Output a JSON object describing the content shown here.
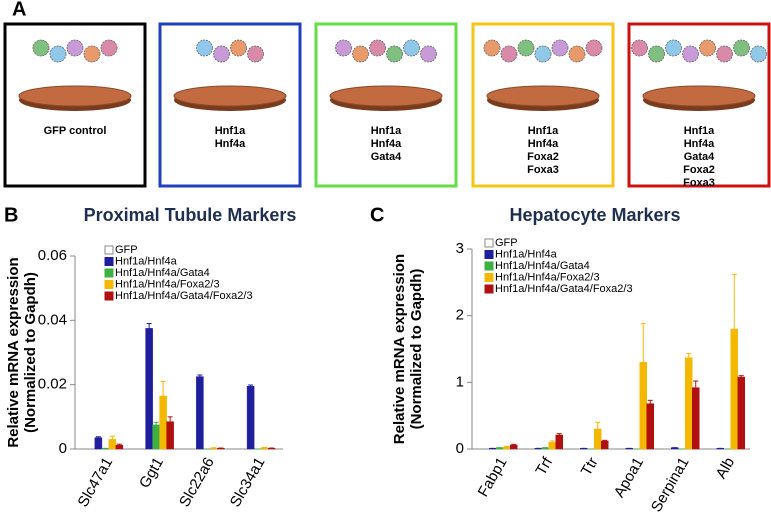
{
  "panels": [
    {
      "label": "A",
      "boxes": [
        {
          "color": "#000000",
          "lines": [
            "GFP control"
          ]
        },
        {
          "color": "#1f3fbf",
          "lines": [
            "Hnf1a",
            "Hnf4a"
          ]
        },
        {
          "color": "#66dd44",
          "lines": [
            "Hnf1a",
            "Hnf4a",
            "Gata4"
          ]
        },
        {
          "color": "#f5c518",
          "lines": [
            "Hnf1a",
            "Hnf4a",
            "Foxa2",
            "Foxa3"
          ]
        },
        {
          "color": "#cc1111",
          "lines": [
            "Hnf1a",
            "Hnf4a",
            "Gata4",
            "Foxa2",
            "Foxa3"
          ]
        }
      ]
    }
  ],
  "chart_data": [
    {
      "type": "bar",
      "panel_label": "B",
      "title": "Proximal Tubule Markers",
      "ylabel": [
        "Relative mRNA expression",
        "(Normalized to Gapdh)"
      ],
      "categories": [
        "Slc47a1",
        "Ggt1",
        "Slc22a6",
        "Slc34a1"
      ],
      "ylim": [
        0,
        0.06
      ],
      "yticks": [
        0,
        0.02,
        0.04,
        0.06
      ],
      "series": [
        {
          "name": "GFP",
          "color": "#ffffff",
          "values": [
            0,
            0,
            0,
            0
          ],
          "errors": [
            0,
            0,
            0,
            0
          ]
        },
        {
          "name": "Hnf1a/Hnf4a",
          "color": "#1f1f9e",
          "values": [
            0.0035,
            0.0375,
            0.0225,
            0.0195
          ],
          "errors": [
            0.0003,
            0.0015,
            0.0005,
            0.0004
          ]
        },
        {
          "name": "Hnf1a/Hnf4a/Gata4",
          "color": "#3cb043",
          "values": [
            0.0002,
            0.0075,
            0,
            0
          ],
          "errors": [
            0,
            0.0008,
            0,
            0
          ]
        },
        {
          "name": "Hnf1a/Hnf4a/Foxa2/3",
          "color": "#f5b800",
          "values": [
            0.003,
            0.0165,
            0.0003,
            0.0004
          ],
          "errors": [
            0.001,
            0.0045,
            0.0001,
            0.0001
          ]
        },
        {
          "name": "Hnf1a/Hnf4a/Gata4/Foxa2/3",
          "color": "#b01010",
          "values": [
            0.0012,
            0.0085,
            0.0002,
            0.0002
          ],
          "errors": [
            0.0003,
            0.0015,
            0.0001,
            0.0001
          ]
        }
      ]
    },
    {
      "type": "bar",
      "panel_label": "C",
      "title": "Hepatocyte Markers",
      "ylabel": [
        "Relative mRNA expression",
        "(Normalized to Gapdh)"
      ],
      "categories": [
        "Fabp1",
        "Trf",
        "Ttr",
        "Apoa1",
        "Serpina1",
        "Alb"
      ],
      "ylim": [
        0,
        3
      ],
      "yticks": [
        0,
        1,
        2,
        3
      ],
      "series": [
        {
          "name": "GFP",
          "color": "#ffffff",
          "values": [
            0,
            0,
            0,
            0,
            0,
            0
          ],
          "errors": [
            0,
            0,
            0,
            0,
            0,
            0
          ]
        },
        {
          "name": "Hnf1a/Hnf4a",
          "color": "#1f1f9e",
          "values": [
            0.01,
            0.01,
            0.01,
            0.01,
            0.02,
            0.01
          ],
          "errors": [
            0,
            0,
            0,
            0,
            0,
            0
          ]
        },
        {
          "name": "Hnf1a/Hnf4a/Gata4",
          "color": "#3cb043",
          "values": [
            0.02,
            0.02,
            0,
            0,
            0,
            0
          ],
          "errors": [
            0,
            0,
            0,
            0,
            0,
            0
          ]
        },
        {
          "name": "Hnf1a/Hnf4a/Foxa2/3",
          "color": "#f5b800",
          "values": [
            0.03,
            0.1,
            0.3,
            1.3,
            1.37,
            1.8
          ],
          "errors": [
            0.01,
            0.02,
            0.1,
            0.58,
            0.06,
            0.82
          ]
        },
        {
          "name": "Hnf1a/Hnf4a/Gata4/Foxa2/3",
          "color": "#b01010",
          "values": [
            0.06,
            0.21,
            0.12,
            0.68,
            0.92,
            1.08
          ],
          "errors": [
            0.01,
            0.02,
            0.01,
            0.05,
            0.1,
            0.02
          ]
        }
      ]
    }
  ]
}
